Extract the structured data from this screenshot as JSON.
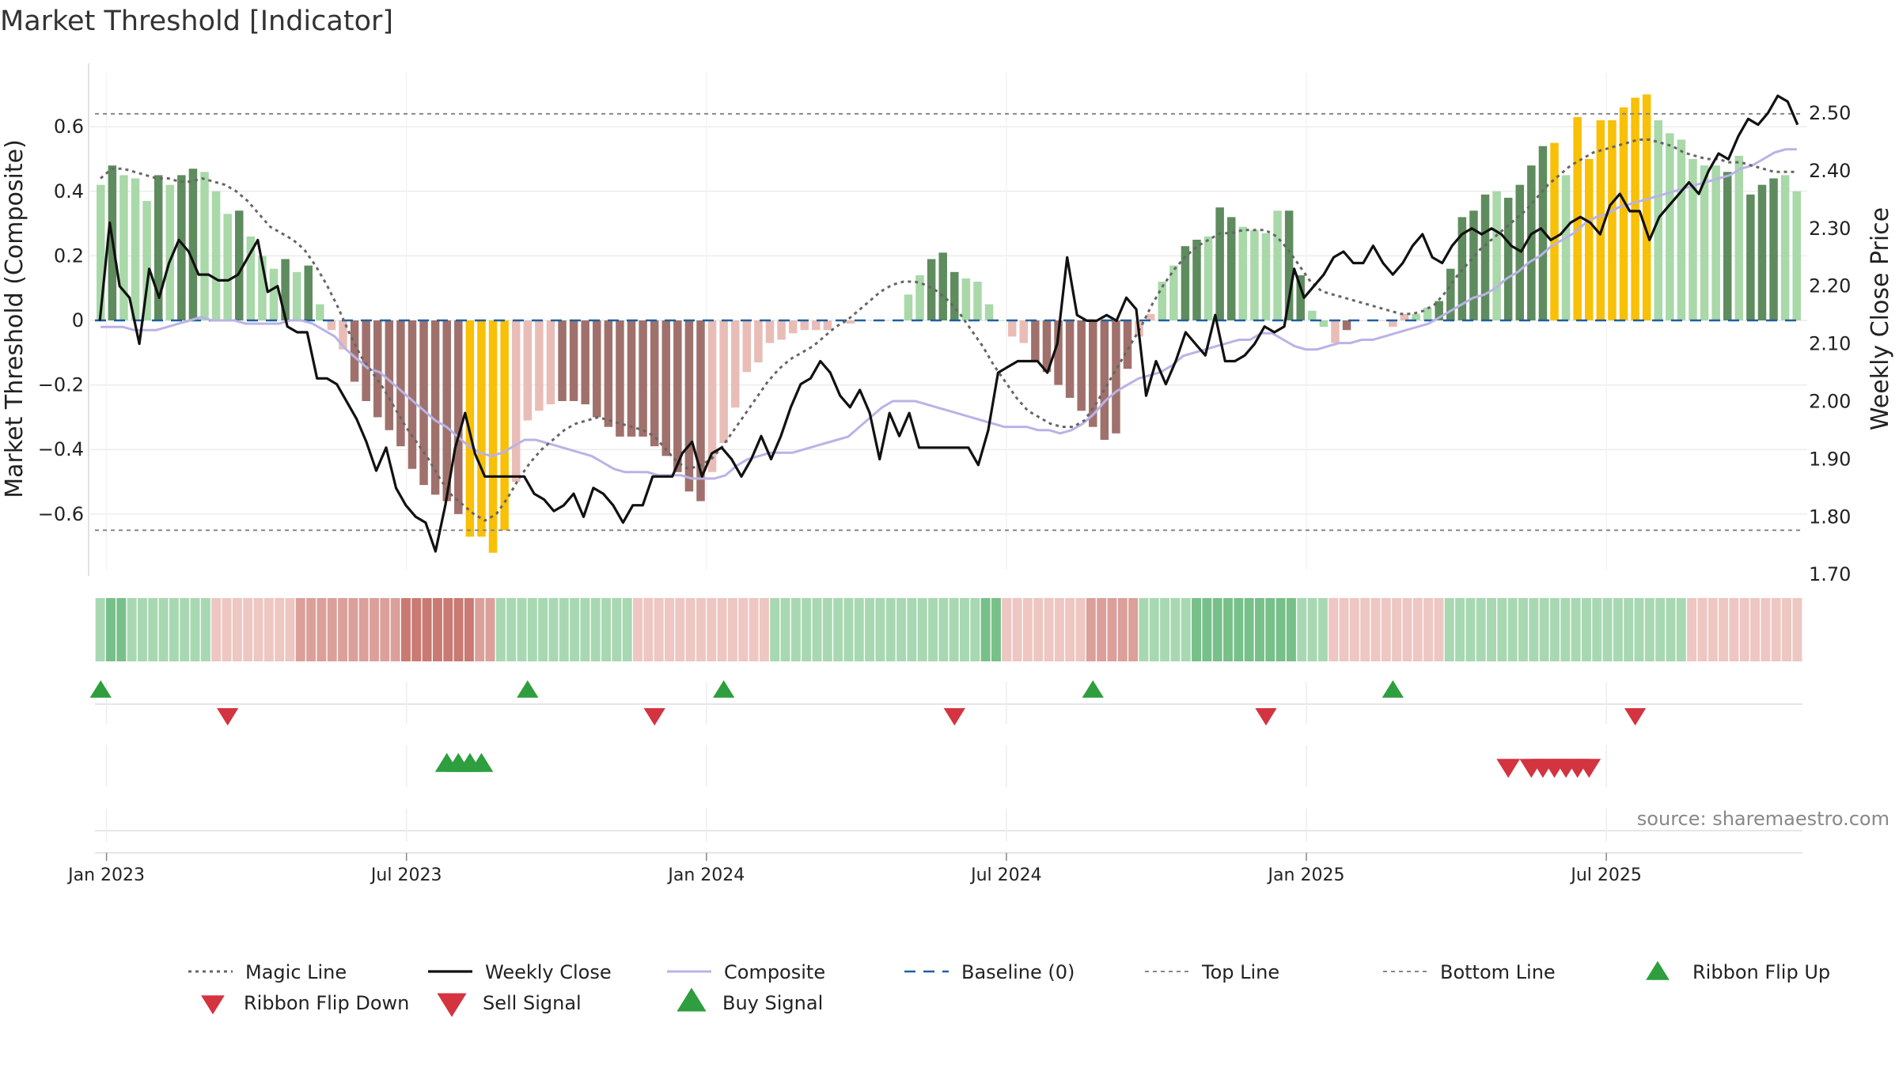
{
  "title": "Market Threshold [Indicator]",
  "source": "source: sharemaestro.com",
  "colors": {
    "dark_green": "#5e8c5e",
    "light_green": "#a9d8a9",
    "dark_red": "#a0716c",
    "light_red": "#e9bdb7",
    "gold": "#f8c006",
    "close": "#111111",
    "composite": "#b9b3e6",
    "magic": "#666666",
    "baseline": "#1f5fa0",
    "buy": "#2e9e3e",
    "sell": "#d43340"
  },
  "chart_data": {
    "type": "bar",
    "left_axis": {
      "label": "Market Threshold (Composite)",
      "range": [
        -0.8,
        0.8
      ],
      "ticks": [
        "0.6",
        "0.4",
        "0.2",
        "0",
        "−0.2",
        "−0.4",
        "−0.6"
      ],
      "tick_values": [
        0.6,
        0.4,
        0.2,
        0,
        -0.2,
        -0.4,
        -0.6
      ]
    },
    "right_axis": {
      "label": "Weekly Close Price",
      "range": [
        1.7,
        2.57
      ],
      "ticks": [
        "2.50",
        "2.40",
        "2.30",
        "2.20",
        "2.10",
        "2.00",
        "1.90",
        "1.80",
        "1.70"
      ],
      "tick_values": [
        2.5,
        2.4,
        2.3,
        2.2,
        2.1,
        2.0,
        1.9,
        1.8,
        1.7
      ]
    },
    "x_ticks": [
      "Jan 2023",
      "Jul 2023",
      "Jan 2024",
      "Jul 2024",
      "Jan 2025",
      "Jul 2025"
    ],
    "x_tick_weeks": [
      1,
      27,
      53,
      79,
      105,
      131
    ],
    "top_line": 0.64,
    "bottom_line": -0.65,
    "histogram": [
      0.42,
      0.48,
      0.45,
      0.44,
      0.37,
      0.45,
      0.42,
      0.45,
      0.47,
      0.46,
      0.4,
      0.33,
      0.34,
      0.26,
      0.2,
      0.16,
      0.19,
      0.15,
      0.17,
      0.05,
      -0.03,
      -0.09,
      -0.19,
      -0.25,
      -0.3,
      -0.34,
      -0.39,
      -0.46,
      -0.51,
      -0.54,
      -0.56,
      -0.6,
      -0.67,
      -0.67,
      -0.72,
      -0.65,
      -0.5,
      -0.31,
      -0.28,
      -0.26,
      -0.25,
      -0.25,
      -0.26,
      -0.3,
      -0.33,
      -0.36,
      -0.36,
      -0.36,
      -0.39,
      -0.42,
      -0.47,
      -0.53,
      -0.56,
      -0.47,
      -0.38,
      -0.27,
      -0.16,
      -0.13,
      -0.07,
      -0.06,
      -0.04,
      -0.03,
      -0.03,
      -0.03,
      0.0,
      -0.01,
      0.0,
      0.0,
      0.0,
      0.0,
      0.08,
      0.14,
      0.19,
      0.21,
      0.15,
      0.13,
      0.12,
      0.05,
      0.0,
      -0.05,
      -0.07,
      -0.13,
      -0.16,
      -0.2,
      -0.24,
      -0.28,
      -0.33,
      -0.37,
      -0.35,
      -0.15,
      -0.05,
      0.02,
      0.12,
      0.17,
      0.23,
      0.25,
      0.26,
      0.35,
      0.32,
      0.29,
      0.28,
      0.27,
      0.34,
      0.34,
      0.14,
      0.03,
      -0.02,
      -0.07,
      -0.03,
      0.0,
      0.0,
      0.0,
      -0.02,
      0.02,
      0.02,
      0.04,
      0.06,
      0.16,
      0.32,
      0.34,
      0.39,
      0.4,
      0.38,
      0.42,
      0.48,
      0.54,
      0.55,
      0.45,
      0.63,
      0.5,
      0.62,
      0.62,
      0.66,
      0.69,
      0.7,
      0.62,
      0.58,
      0.56,
      0.5,
      0.48,
      0.48,
      0.46,
      0.51,
      0.39,
      0.42,
      0.44,
      0.45,
      0.4
    ],
    "bar_colors": [
      "lg",
      "dg",
      "lg",
      "lg",
      "lg",
      "dg",
      "lg",
      "dg",
      "dg",
      "lg",
      "lg",
      "lg",
      "dg",
      "lg",
      "lg",
      "lg",
      "dg",
      "lg",
      "dg",
      "lg",
      "lr",
      "lr",
      "dr",
      "dr",
      "dr",
      "dr",
      "dr",
      "dr",
      "dr",
      "dr",
      "dr",
      "dr",
      "go",
      "go",
      "go",
      "go",
      "lr",
      "lr",
      "lr",
      "lr",
      "dr",
      "dr",
      "dr",
      "dr",
      "dr",
      "dr",
      "dr",
      "dr",
      "dr",
      "dr",
      "dr",
      "dr",
      "dr",
      "lr",
      "lr",
      "lr",
      "lr",
      "lr",
      "lr",
      "lr",
      "lr",
      "lr",
      "lr",
      "lr",
      "lr",
      "lr",
      "lr",
      "lr",
      "lr",
      "lr",
      "lg",
      "lg",
      "dg",
      "dg",
      "dg",
      "lg",
      "lg",
      "lg",
      "lg",
      "lr",
      "lr",
      "dr",
      "dr",
      "dr",
      "dr",
      "dr",
      "dr",
      "dr",
      "dr",
      "dr",
      "lr",
      "lr",
      "lg",
      "lg",
      "dg",
      "dg",
      "lg",
      "dg",
      "dg",
      "lg",
      "lg",
      "lg",
      "lg",
      "dg",
      "dg",
      "lg",
      "lg",
      "lr",
      "dr",
      "lr",
      "lr",
      "lr",
      "lr",
      "lr",
      "lg",
      "lg",
      "dg",
      "dg",
      "dg",
      "dg",
      "dg",
      "lg",
      "dg",
      "dg",
      "dg",
      "dg",
      "go",
      "lg",
      "go",
      "go",
      "go",
      "go",
      "go",
      "go",
      "go",
      "lg",
      "lg",
      "lg",
      "lg",
      "lg",
      "lg",
      "dg",
      "lg",
      "dg",
      "dg",
      "dg",
      "lg"
    ],
    "series": [
      {
        "name": "Weekly Close",
        "axis": "right",
        "values": [
          2.14,
          2.31,
          2.2,
          2.18,
          2.1,
          2.23,
          2.18,
          2.24,
          2.28,
          2.26,
          2.22,
          2.22,
          2.21,
          2.21,
          2.22,
          2.25,
          2.28,
          2.19,
          2.2,
          2.13,
          2.12,
          2.12,
          2.04,
          2.04,
          2.03,
          2.0,
          1.97,
          1.93,
          1.88,
          1.92,
          1.85,
          1.82,
          1.8,
          1.79,
          1.74,
          1.82,
          1.92,
          1.98,
          1.91,
          1.87,
          1.87,
          1.87,
          1.87,
          1.87,
          1.84,
          1.83,
          1.81,
          1.82,
          1.84,
          1.8,
          1.85,
          1.84,
          1.82,
          1.79,
          1.82,
          1.82,
          1.87,
          1.87,
          1.87,
          1.91,
          1.93,
          1.87,
          1.91,
          1.92,
          1.9,
          1.87,
          1.9,
          1.94,
          1.9,
          1.94,
          1.99,
          2.03,
          2.04,
          2.07,
          2.05,
          2.01,
          1.99,
          2.02,
          1.98,
          1.9,
          1.98,
          1.94,
          1.98,
          1.92,
          1.92,
          1.92,
          1.92,
          1.92,
          1.92,
          1.89,
          1.95,
          2.05,
          2.06,
          2.07,
          2.07,
          2.07,
          2.05,
          2.1,
          2.25,
          2.15,
          2.14,
          2.14,
          2.15,
          2.14,
          2.18,
          2.16,
          2.01,
          2.07,
          2.03,
          2.07,
          2.12,
          2.1,
          2.08,
          2.15,
          2.07,
          2.07,
          2.08,
          2.1,
          2.13,
          2.12,
          2.13,
          2.23,
          2.18,
          2.2,
          2.22,
          2.25,
          2.26,
          2.24,
          2.24,
          2.27,
          2.24,
          2.22,
          2.24,
          2.27,
          2.29,
          2.25,
          2.24,
          2.27,
          2.29,
          2.3,
          2.29,
          2.3,
          2.29,
          2.27,
          2.26,
          2.29,
          2.3,
          2.28,
          2.29,
          2.31,
          2.32,
          2.31,
          2.29,
          2.34,
          2.36,
          2.33,
          2.33,
          2.28,
          2.32,
          2.34,
          2.36,
          2.38,
          2.36,
          2.4,
          2.43,
          2.42,
          2.46,
          2.49,
          2.48,
          2.5,
          2.53,
          2.52,
          2.48
        ]
      },
      {
        "name": "Composite",
        "axis": "left",
        "values": [
          -0.02,
          -0.02,
          -0.02,
          -0.03,
          -0.03,
          -0.03,
          -0.02,
          -0.01,
          0.0,
          0.01,
          0.0,
          0.0,
          0.0,
          -0.01,
          -0.01,
          -0.01,
          -0.01,
          0.0,
          0.0,
          -0.01,
          -0.03,
          -0.05,
          -0.09,
          -0.12,
          -0.15,
          -0.16,
          -0.19,
          -0.22,
          -0.25,
          -0.28,
          -0.31,
          -0.33,
          -0.36,
          -0.39,
          -0.41,
          -0.42,
          -0.41,
          -0.39,
          -0.37,
          -0.37,
          -0.38,
          -0.39,
          -0.4,
          -0.41,
          -0.42,
          -0.44,
          -0.46,
          -0.47,
          -0.47,
          -0.47,
          -0.48,
          -0.48,
          -0.48,
          -0.49,
          -0.49,
          -0.49,
          -0.48,
          -0.45,
          -0.43,
          -0.42,
          -0.41,
          -0.41,
          -0.41,
          -0.4,
          -0.39,
          -0.38,
          -0.37,
          -0.36,
          -0.33,
          -0.3,
          -0.27,
          -0.25,
          -0.25,
          -0.25,
          -0.26,
          -0.27,
          -0.28,
          -0.29,
          -0.3,
          -0.31,
          -0.32,
          -0.33,
          -0.33,
          -0.33,
          -0.34,
          -0.34,
          -0.35,
          -0.34,
          -0.32,
          -0.29,
          -0.25,
          -0.22,
          -0.2,
          -0.18,
          -0.17,
          -0.16,
          -0.14,
          -0.11,
          -0.1,
          -0.09,
          -0.08,
          -0.07,
          -0.06,
          -0.06,
          -0.04,
          -0.04,
          -0.06,
          -0.08,
          -0.09,
          -0.09,
          -0.08,
          -0.07,
          -0.07,
          -0.06,
          -0.06,
          -0.05,
          -0.04,
          -0.03,
          -0.02,
          -0.01,
          0.01,
          0.03,
          0.05,
          0.07,
          0.08,
          0.1,
          0.13,
          0.15,
          0.18,
          0.2,
          0.23,
          0.25,
          0.27,
          0.3,
          0.32,
          0.33,
          0.35,
          0.36,
          0.37,
          0.38,
          0.39,
          0.4,
          0.41,
          0.42,
          0.43,
          0.44,
          0.45,
          0.47,
          0.48,
          0.5,
          0.52,
          0.53,
          0.53
        ]
      },
      {
        "name": "Magic Line",
        "axis": "left",
        "values": [
          0.44,
          0.47,
          0.47,
          0.46,
          0.45,
          0.44,
          0.44,
          0.43,
          0.43,
          0.44,
          0.43,
          0.42,
          0.4,
          0.37,
          0.33,
          0.29,
          0.27,
          0.25,
          0.22,
          0.17,
          0.11,
          0.04,
          -0.04,
          -0.11,
          -0.16,
          -0.21,
          -0.27,
          -0.33,
          -0.38,
          -0.43,
          -0.49,
          -0.54,
          -0.57,
          -0.6,
          -0.62,
          -0.6,
          -0.55,
          -0.49,
          -0.44,
          -0.4,
          -0.37,
          -0.34,
          -0.32,
          -0.31,
          -0.3,
          -0.31,
          -0.32,
          -0.33,
          -0.34,
          -0.36,
          -0.4,
          -0.44,
          -0.46,
          -0.45,
          -0.43,
          -0.39,
          -0.34,
          -0.29,
          -0.24,
          -0.19,
          -0.15,
          -0.12,
          -0.1,
          -0.08,
          -0.05,
          -0.02,
          0.0,
          0.03,
          0.06,
          0.09,
          0.11,
          0.12,
          0.12,
          0.11,
          0.09,
          0.06,
          0.02,
          -0.03,
          -0.08,
          -0.14,
          -0.19,
          -0.24,
          -0.28,
          -0.3,
          -0.32,
          -0.33,
          -0.33,
          -0.31,
          -0.26,
          -0.2,
          -0.14,
          -0.08,
          -0.02,
          0.05,
          0.11,
          0.16,
          0.2,
          0.23,
          0.25,
          0.27,
          0.27,
          0.28,
          0.28,
          0.28,
          0.26,
          0.22,
          0.17,
          0.12,
          0.09,
          0.08,
          0.07,
          0.06,
          0.05,
          0.04,
          0.03,
          0.02,
          0.02,
          0.03,
          0.05,
          0.09,
          0.14,
          0.18,
          0.22,
          0.25,
          0.28,
          0.31,
          0.34,
          0.38,
          0.42,
          0.45,
          0.48,
          0.5,
          0.52,
          0.53,
          0.54,
          0.55,
          0.56,
          0.56,
          0.55,
          0.54,
          0.52,
          0.51,
          0.5,
          0.5,
          0.49,
          0.49,
          0.48,
          0.47,
          0.46,
          0.46,
          0.46
        ]
      },
      {
        "name": "Baseline (0)",
        "axis": "left",
        "values": "constant 0"
      }
    ],
    "ribbon": [
      1,
      2,
      2,
      1,
      1,
      1,
      1,
      1,
      1,
      1,
      1,
      -1,
      -1,
      -1,
      -1,
      -1,
      -1,
      -1,
      -1,
      -2,
      -2,
      -2,
      -2,
      -2,
      -2,
      -2,
      -2,
      -2,
      -2,
      -3,
      -3,
      -3,
      -3,
      -3,
      -3,
      -3,
      -2,
      -2,
      1,
      1,
      1,
      1,
      1,
      1,
      1,
      1,
      1,
      1,
      1,
      1,
      1,
      -1,
      -1,
      -1,
      -1,
      -1,
      -1,
      -1,
      -1,
      -1,
      -1,
      -1,
      -1,
      -1,
      1,
      1,
      1,
      1,
      1,
      1,
      1,
      1,
      1,
      1,
      1,
      1,
      1,
      1,
      1,
      1,
      1,
      1,
      1,
      1,
      2,
      2,
      -1,
      -1,
      -1,
      -1,
      -1,
      -1,
      -1,
      -1,
      -2,
      -2,
      -2,
      -2,
      -2,
      1,
      1,
      1,
      1,
      1,
      2,
      2,
      2,
      2,
      2,
      2,
      2,
      2,
      2,
      2,
      1,
      1,
      1,
      -1,
      -1,
      -1,
      -1,
      -1,
      -1,
      -1,
      -1,
      -1,
      -1,
      -1,
      1,
      1,
      1,
      1,
      1,
      1,
      1,
      1,
      1,
      1,
      1,
      1,
      1,
      1,
      1,
      1,
      1,
      1,
      1,
      1,
      1,
      1,
      1,
      -1,
      -1,
      -1,
      -1,
      -1,
      -1,
      -1,
      -1,
      -1,
      -1,
      -1
    ],
    "ribbon_flip_up_weeks": [
      0,
      37,
      54,
      86,
      112
    ],
    "ribbon_flip_down_weeks": [
      11,
      48,
      74,
      101,
      133
    ],
    "buy_signal_weeks": [
      30,
      31,
      32,
      33
    ],
    "sell_signal_weeks": [
      122,
      124,
      125,
      126,
      127,
      128,
      129
    ],
    "legend": [
      {
        "label": "Magic Line",
        "key": "magic"
      },
      {
        "label": "Weekly Close",
        "key": "close"
      },
      {
        "label": "Composite",
        "key": "composite"
      },
      {
        "label": "Baseline (0)",
        "key": "baseline"
      },
      {
        "label": "Top Line",
        "key": "top"
      },
      {
        "label": "Bottom Line",
        "key": "bottom"
      },
      {
        "label": "Ribbon Flip Up",
        "key": "flipup"
      },
      {
        "label": "Ribbon Flip Down",
        "key": "flipdown"
      },
      {
        "label": "Sell Signal",
        "key": "sell"
      },
      {
        "label": "Buy Signal",
        "key": "buy"
      }
    ]
  }
}
